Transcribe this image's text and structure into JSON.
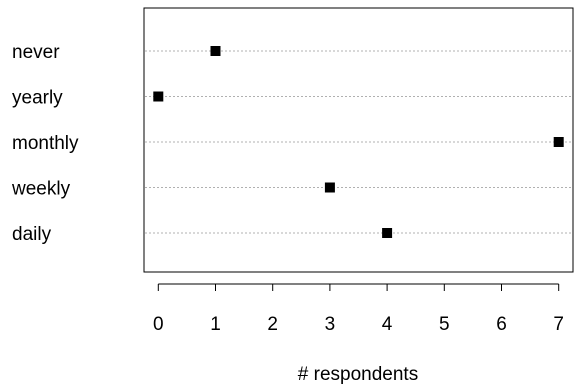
{
  "chart_data": {
    "type": "dot",
    "categories": [
      "never",
      "yearly",
      "monthly",
      "weekly",
      "daily"
    ],
    "values": [
      1,
      0,
      7,
      3,
      4
    ],
    "xlabel": "# respondents",
    "ylabel": "",
    "title": "",
    "x_ticks": [
      0,
      1,
      2,
      3,
      4,
      5,
      6,
      7
    ],
    "xlim": [
      -0.25,
      7.25
    ],
    "grid": "dotted horizontal guide lines per category",
    "marker": "filled square",
    "colors": {
      "point": "#000000",
      "guide": "#b0b0b0",
      "frame": "#000000"
    }
  }
}
